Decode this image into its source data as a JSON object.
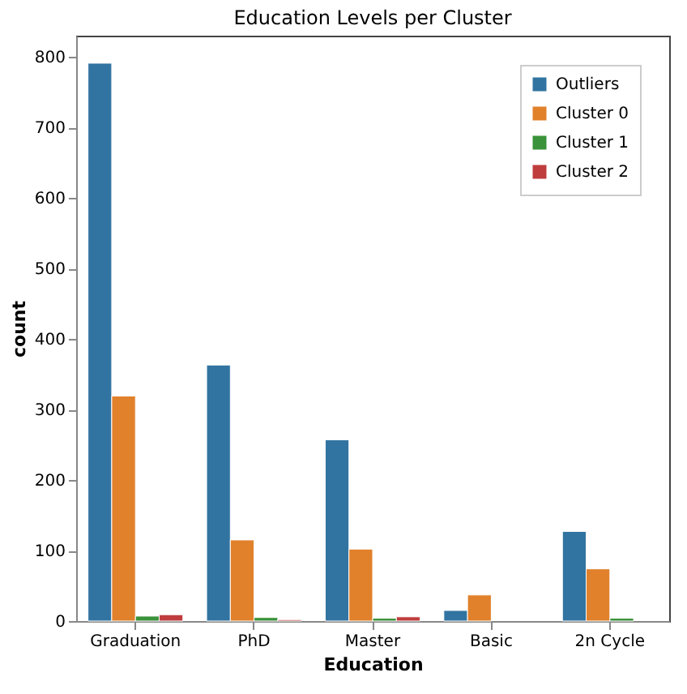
{
  "chart_data": {
    "type": "bar",
    "title": "Education Levels per Cluster",
    "xlabel": "Education",
    "ylabel": "count",
    "categories": [
      "Graduation",
      "PhD",
      "Master",
      "Basic",
      "2n Cycle"
    ],
    "series": [
      {
        "name": "Outliers",
        "color": "#3274a1",
        "values": [
          791,
          363,
          257,
          15,
          127
        ]
      },
      {
        "name": "Cluster 0",
        "color": "#e1812c",
        "values": [
          319,
          115,
          102,
          37,
          74
        ]
      },
      {
        "name": "Cluster 1",
        "color": "#3a923a",
        "values": [
          7,
          5,
          4,
          null,
          4
        ]
      },
      {
        "name": "Cluster 2",
        "color": "#c03d3e",
        "values": [
          9,
          2,
          6,
          null,
          null
        ]
      }
    ],
    "ylim": [
      0,
      830
    ],
    "yticks": [
      0,
      100,
      200,
      300,
      400,
      500,
      600,
      700,
      800
    ],
    "grid": false,
    "legend": "top right"
  }
}
